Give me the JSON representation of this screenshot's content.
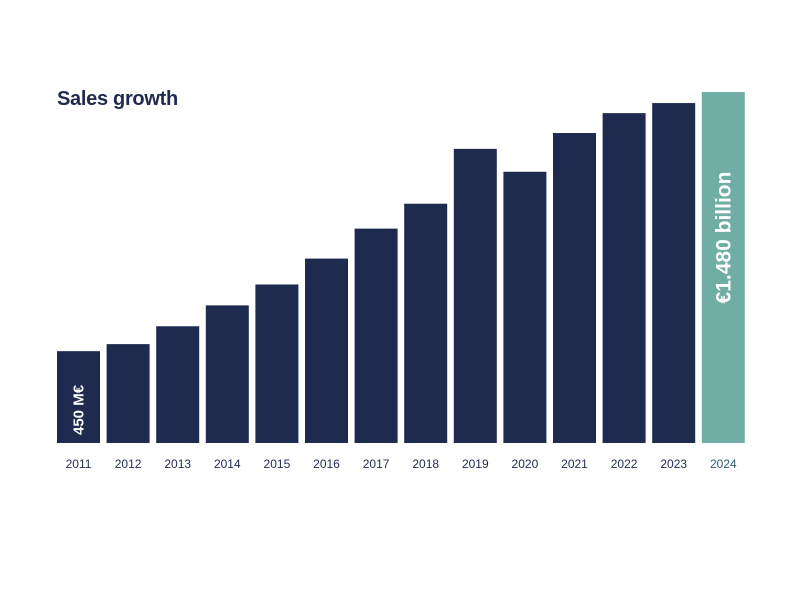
{
  "chart_data": {
    "type": "bar",
    "title": "Sales growth",
    "xlabel": "",
    "ylabel": "",
    "categories": [
      "2011",
      "2012",
      "2013",
      "2014",
      "2015",
      "2016",
      "2017",
      "2018",
      "2019",
      "2020",
      "2021",
      "2022",
      "2023",
      "2024"
    ],
    "values": [
      450,
      478,
      549,
      632,
      715,
      818,
      937,
      1036,
      1254,
      1163,
      1317,
      1396,
      1436,
      1480
    ],
    "unit": "M€",
    "data_labels": {
      "0": "450 M€",
      "13": "€1.480 billion"
    },
    "highlight_index": 13,
    "ylim": [
      85,
      1480
    ],
    "grid": false,
    "colors": {
      "bar": "#1f2a4f",
      "highlight": "#6fada5",
      "title": "#1f2a4f",
      "tick": "#1f2a4f",
      "highlight_tick": "#2f5f73",
      "label": "#ffffff"
    }
  }
}
